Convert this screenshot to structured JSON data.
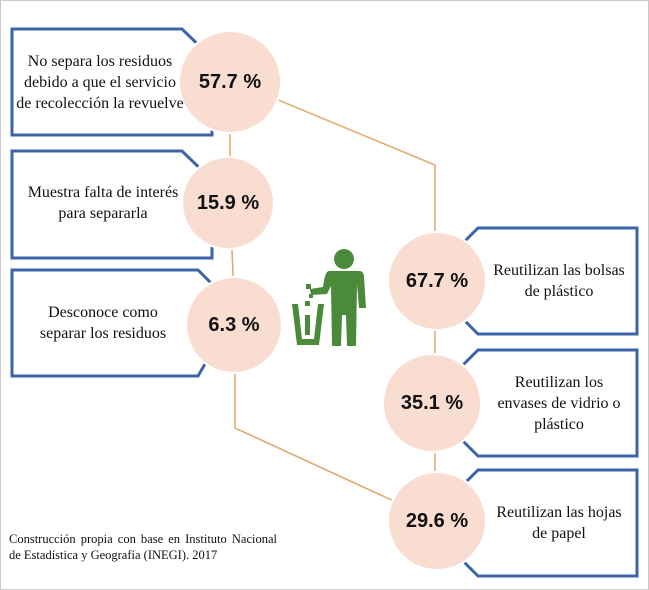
{
  "left_items": [
    {
      "label": "No separa los residuos debido a que el servicio de recolección la revuelve",
      "value": "57.7 %"
    },
    {
      "label": "Muestra falta de interés para separarla",
      "value": "15.9 %"
    },
    {
      "label": "Desconoce como separar los residuos",
      "value": "6.3 %"
    }
  ],
  "right_items": [
    {
      "label": "Reutilizan las bolsas de plástico",
      "value": "67.7 %"
    },
    {
      "label": "Reutilizan los envases de vidrio o plástico",
      "value": "35.1 %"
    },
    {
      "label": "Reutilizan las hojas de papel",
      "value": "29.6 %"
    }
  ],
  "source_note": "Construcción propia con base en Instituto Nacional de Estadística y Geografía (INEGI). 2017",
  "icon": "person-throwing-trash-icon",
  "colors": {
    "box_border": "#3d64a8",
    "circle_fill": "#f9ddd0",
    "connector": "#e0a86a",
    "icon_green": "#4a8a3a"
  }
}
